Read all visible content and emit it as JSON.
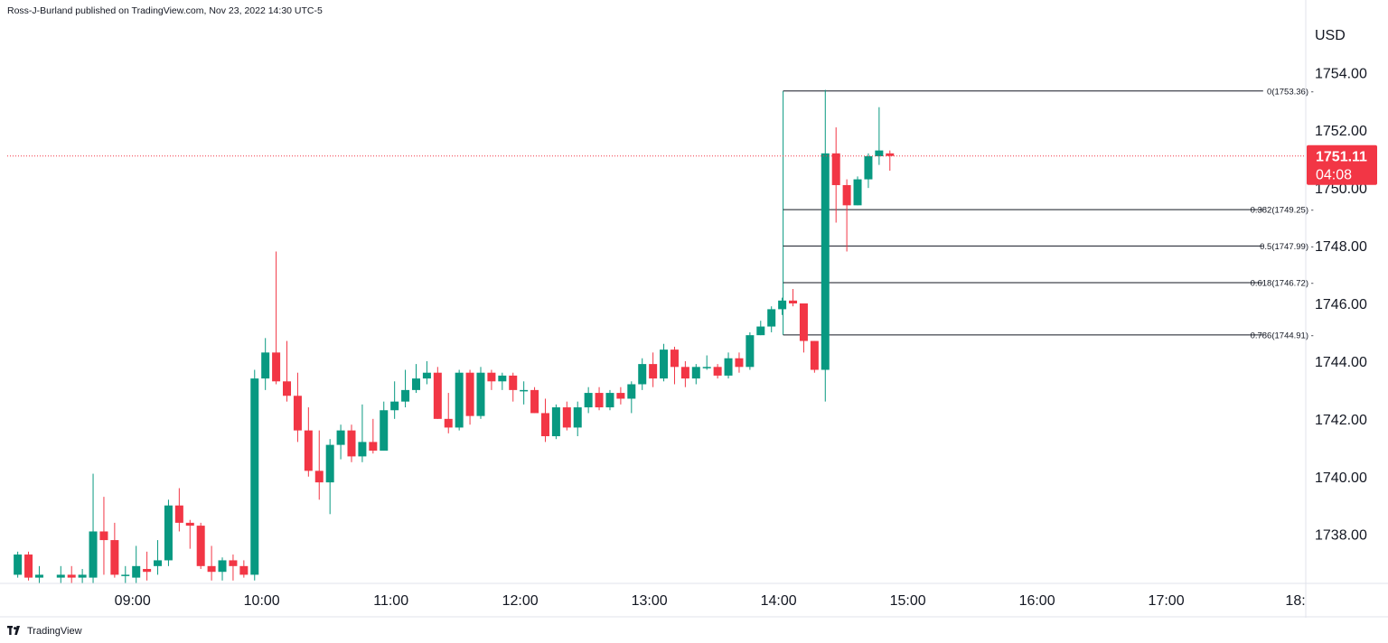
{
  "header": {
    "publisher_line": "Ross-J-Burland published on TradingView.com, Nov 23, 2022 14:30 UTC-5"
  },
  "footer": {
    "brand": "TradingView",
    "logo_icon": "tradingview-logo-icon"
  },
  "colors": {
    "up": "#089981",
    "down": "#f23645",
    "grid_border": "#e0e3eb",
    "fib_line": "#131722",
    "price_tag": "#f23645"
  },
  "chart_data": {
    "type": "candlestick",
    "currency_label": "USD",
    "ylim": [
      1736.3,
      1755.7
    ],
    "y_ticks": [
      "1754.00",
      "1752.00",
      "1750.00",
      "1748.00",
      "1746.00",
      "1744.00",
      "1742.00",
      "1740.00",
      "1738.00"
    ],
    "y_tick_values": [
      1754,
      1752,
      1750,
      1748,
      1746,
      1744,
      1742,
      1740,
      1738
    ],
    "x_ticks": [
      "09:00",
      "10:00",
      "11:00",
      "12:00",
      "13:00",
      "14:00",
      "15:00",
      "16:00",
      "17:00",
      "18:"
    ],
    "x_tick_values": [
      9,
      10,
      11,
      12,
      13,
      14,
      15,
      16,
      17,
      18
    ],
    "x_range": [
      8.03,
      18.08
    ],
    "bar_minutes": 5,
    "candles": [
      {
        "t": "08:05",
        "o": 1736.6,
        "h": 1737.4,
        "l": 1736.5,
        "c": 1737.3
      },
      {
        "t": "08:10",
        "o": 1737.3,
        "h": 1737.4,
        "l": 1736.4,
        "c": 1736.5
      },
      {
        "t": "08:15",
        "o": 1736.5,
        "h": 1736.9,
        "l": 1736.3,
        "c": 1736.6
      },
      {
        "t": "08:25",
        "o": 1736.5,
        "h": 1736.9,
        "l": 1736.3,
        "c": 1736.6
      },
      {
        "t": "08:30",
        "o": 1736.6,
        "h": 1736.9,
        "l": 1736.3,
        "c": 1736.5
      },
      {
        "t": "08:35",
        "o": 1736.5,
        "h": 1736.8,
        "l": 1736.3,
        "c": 1736.6
      },
      {
        "t": "08:40",
        "o": 1736.5,
        "h": 1740.1,
        "l": 1736.3,
        "c": 1738.1
      },
      {
        "t": "08:45",
        "o": 1738.1,
        "h": 1739.3,
        "l": 1736.6,
        "c": 1737.8
      },
      {
        "t": "08:50",
        "o": 1737.8,
        "h": 1738.4,
        "l": 1736.5,
        "c": 1736.6
      },
      {
        "t": "08:55",
        "o": 1736.6,
        "h": 1736.9,
        "l": 1736.3,
        "c": 1736.6
      },
      {
        "t": "09:00",
        "o": 1736.5,
        "h": 1737.6,
        "l": 1736.3,
        "c": 1736.9
      },
      {
        "t": "09:05",
        "o": 1736.8,
        "h": 1737.4,
        "l": 1736.4,
        "c": 1736.7
      },
      {
        "t": "09:10",
        "o": 1736.9,
        "h": 1737.8,
        "l": 1736.6,
        "c": 1737.1
      },
      {
        "t": "09:15",
        "o": 1737.1,
        "h": 1739.2,
        "l": 1736.9,
        "c": 1739.0
      },
      {
        "t": "09:20",
        "o": 1739.0,
        "h": 1739.6,
        "l": 1738.1,
        "c": 1738.4
      },
      {
        "t": "09:25",
        "o": 1738.4,
        "h": 1738.5,
        "l": 1737.5,
        "c": 1738.3
      },
      {
        "t": "09:30",
        "o": 1738.3,
        "h": 1738.4,
        "l": 1736.8,
        "c": 1736.9
      },
      {
        "t": "09:35",
        "o": 1736.9,
        "h": 1737.6,
        "l": 1736.4,
        "c": 1736.7
      },
      {
        "t": "09:40",
        "o": 1736.7,
        "h": 1737.2,
        "l": 1736.4,
        "c": 1737.1
      },
      {
        "t": "09:45",
        "o": 1737.1,
        "h": 1737.3,
        "l": 1736.4,
        "c": 1736.9
      },
      {
        "t": "09:50",
        "o": 1736.9,
        "h": 1737.1,
        "l": 1736.5,
        "c": 1736.6
      },
      {
        "t": "09:55",
        "o": 1736.6,
        "h": 1743.7,
        "l": 1736.4,
        "c": 1743.4
      },
      {
        "t": "10:00",
        "o": 1743.4,
        "h": 1744.8,
        "l": 1743.0,
        "c": 1744.3
      },
      {
        "t": "10:05",
        "o": 1744.3,
        "h": 1747.8,
        "l": 1743.2,
        "c": 1743.3
      },
      {
        "t": "10:10",
        "o": 1743.3,
        "h": 1744.7,
        "l": 1742.6,
        "c": 1742.8
      },
      {
        "t": "10:15",
        "o": 1742.8,
        "h": 1743.6,
        "l": 1741.2,
        "c": 1741.6
      },
      {
        "t": "10:20",
        "o": 1741.6,
        "h": 1742.4,
        "l": 1740.0,
        "c": 1740.2
      },
      {
        "t": "10:25",
        "o": 1740.2,
        "h": 1741.6,
        "l": 1739.2,
        "c": 1739.8
      },
      {
        "t": "10:30",
        "o": 1739.8,
        "h": 1741.3,
        "l": 1738.7,
        "c": 1741.1
      },
      {
        "t": "10:35",
        "o": 1741.1,
        "h": 1741.8,
        "l": 1740.6,
        "c": 1741.6
      },
      {
        "t": "10:40",
        "o": 1741.6,
        "h": 1741.8,
        "l": 1740.5,
        "c": 1740.7
      },
      {
        "t": "10:45",
        "o": 1740.7,
        "h": 1742.5,
        "l": 1740.5,
        "c": 1741.2
      },
      {
        "t": "10:50",
        "o": 1741.2,
        "h": 1742.0,
        "l": 1740.8,
        "c": 1740.9
      },
      {
        "t": "10:55",
        "o": 1740.9,
        "h": 1742.6,
        "l": 1740.9,
        "c": 1742.3
      },
      {
        "t": "11:00",
        "o": 1742.3,
        "h": 1743.3,
        "l": 1742.0,
        "c": 1742.6
      },
      {
        "t": "11:05",
        "o": 1742.6,
        "h": 1743.7,
        "l": 1742.4,
        "c": 1743.0
      },
      {
        "t": "11:10",
        "o": 1743.0,
        "h": 1743.9,
        "l": 1742.9,
        "c": 1743.4
      },
      {
        "t": "11:15",
        "o": 1743.4,
        "h": 1744.0,
        "l": 1743.2,
        "c": 1743.6
      },
      {
        "t": "11:20",
        "o": 1743.6,
        "h": 1743.8,
        "l": 1742.0,
        "c": 1742.0
      },
      {
        "t": "11:25",
        "o": 1742.0,
        "h": 1742.9,
        "l": 1741.5,
        "c": 1741.7
      },
      {
        "t": "11:30",
        "o": 1741.7,
        "h": 1743.7,
        "l": 1741.6,
        "c": 1743.6
      },
      {
        "t": "11:35",
        "o": 1743.6,
        "h": 1743.7,
        "l": 1741.8,
        "c": 1742.1
      },
      {
        "t": "11:40",
        "o": 1742.1,
        "h": 1743.8,
        "l": 1742.0,
        "c": 1743.6
      },
      {
        "t": "11:45",
        "o": 1743.6,
        "h": 1743.7,
        "l": 1743.0,
        "c": 1743.3
      },
      {
        "t": "11:50",
        "o": 1743.3,
        "h": 1743.6,
        "l": 1743.0,
        "c": 1743.5
      },
      {
        "t": "11:55",
        "o": 1743.5,
        "h": 1743.6,
        "l": 1742.6,
        "c": 1743.0
      },
      {
        "t": "12:00",
        "o": 1743.0,
        "h": 1743.3,
        "l": 1742.5,
        "c": 1743.0
      },
      {
        "t": "12:05",
        "o": 1743.0,
        "h": 1743.1,
        "l": 1742.2,
        "c": 1742.2
      },
      {
        "t": "12:10",
        "o": 1742.2,
        "h": 1742.7,
        "l": 1741.2,
        "c": 1741.4
      },
      {
        "t": "12:15",
        "o": 1741.4,
        "h": 1742.5,
        "l": 1741.3,
        "c": 1742.4
      },
      {
        "t": "12:20",
        "o": 1742.4,
        "h": 1742.6,
        "l": 1741.6,
        "c": 1741.7
      },
      {
        "t": "12:25",
        "o": 1741.7,
        "h": 1742.6,
        "l": 1741.4,
        "c": 1742.4
      },
      {
        "t": "12:30",
        "o": 1742.4,
        "h": 1743.1,
        "l": 1742.2,
        "c": 1742.9
      },
      {
        "t": "12:35",
        "o": 1742.9,
        "h": 1743.1,
        "l": 1742.3,
        "c": 1742.4
      },
      {
        "t": "12:40",
        "o": 1742.4,
        "h": 1743.0,
        "l": 1742.3,
        "c": 1742.9
      },
      {
        "t": "12:45",
        "o": 1742.9,
        "h": 1743.1,
        "l": 1742.5,
        "c": 1742.7
      },
      {
        "t": "12:50",
        "o": 1742.7,
        "h": 1743.3,
        "l": 1742.2,
        "c": 1743.2
      },
      {
        "t": "12:55",
        "o": 1743.2,
        "h": 1744.1,
        "l": 1743.0,
        "c": 1743.9
      },
      {
        "t": "13:00",
        "o": 1743.9,
        "h": 1744.3,
        "l": 1743.1,
        "c": 1743.4
      },
      {
        "t": "13:05",
        "o": 1743.4,
        "h": 1744.6,
        "l": 1743.3,
        "c": 1744.4
      },
      {
        "t": "13:10",
        "o": 1744.4,
        "h": 1744.5,
        "l": 1743.2,
        "c": 1743.8
      },
      {
        "t": "13:15",
        "o": 1743.8,
        "h": 1744.0,
        "l": 1743.1,
        "c": 1743.4
      },
      {
        "t": "13:20",
        "o": 1743.4,
        "h": 1743.9,
        "l": 1743.2,
        "c": 1743.8
      },
      {
        "t": "13:25",
        "o": 1743.8,
        "h": 1744.2,
        "l": 1743.7,
        "c": 1743.8
      },
      {
        "t": "13:30",
        "o": 1743.8,
        "h": 1743.9,
        "l": 1743.4,
        "c": 1743.5
      },
      {
        "t": "13:35",
        "o": 1743.5,
        "h": 1744.3,
        "l": 1743.4,
        "c": 1744.1
      },
      {
        "t": "13:40",
        "o": 1744.1,
        "h": 1744.3,
        "l": 1743.6,
        "c": 1743.8
      },
      {
        "t": "13:45",
        "o": 1743.8,
        "h": 1745.0,
        "l": 1743.7,
        "c": 1744.9
      },
      {
        "t": "13:50",
        "o": 1744.9,
        "h": 1745.4,
        "l": 1744.9,
        "c": 1745.2
      },
      {
        "t": "13:55",
        "o": 1745.2,
        "h": 1745.9,
        "l": 1745.0,
        "c": 1745.8
      }
    ],
    "candles_late": [
      {
        "t": "14:00",
        "o": 1745.8,
        "h": 1746.2,
        "l": 1745.6,
        "c": 1746.1
      },
      {
        "t": "14:05",
        "o": 1746.1,
        "h": 1746.5,
        "l": 1745.9,
        "c": 1746.0
      },
      {
        "t": "14:10",
        "o": 1746.0,
        "h": 1746.0,
        "l": 1744.3,
        "c": 1744.7
      },
      {
        "t": "14:15",
        "o": 1744.7,
        "h": 1744.7,
        "l": 1743.6,
        "c": 1743.7
      },
      {
        "t": "14:20",
        "o": 1743.7,
        "h": 1753.4,
        "l": 1742.6,
        "c": 1751.2
      },
      {
        "t": "14:25",
        "o": 1751.2,
        "h": 1752.1,
        "l": 1748.8,
        "c": 1750.1
      },
      {
        "t": "14:30",
        "o": 1750.1,
        "h": 1750.3,
        "l": 1747.8,
        "c": 1749.4
      },
      {
        "t": "14:35",
        "o": 1749.4,
        "h": 1750.4,
        "l": 1749.4,
        "c": 1750.3
      },
      {
        "t": "14:40",
        "o": 1750.3,
        "h": 1751.2,
        "l": 1750.0,
        "c": 1751.1
      },
      {
        "t": "14:45",
        "o": 1751.1,
        "h": 1752.8,
        "l": 1750.8,
        "c": 1751.3
      },
      {
        "t": "14:50",
        "o": 1751.2,
        "h": 1751.3,
        "l": 1750.6,
        "c": 1751.11
      }
    ],
    "fibonacci": {
      "levels": [
        {
          "ratio": 0,
          "price": 1753.36,
          "label": "0(1753.36)"
        },
        {
          "ratio": 0.382,
          "price": 1749.25,
          "label": "0.382(1749.25)"
        },
        {
          "ratio": 0.5,
          "price": 1747.99,
          "label": "0.5(1747.99)"
        },
        {
          "ratio": 0.618,
          "price": 1746.72,
          "label": "0.618(1746.72)"
        },
        {
          "ratio": 0.786,
          "price": 1744.91,
          "label": "0.786(1744.91)"
        }
      ],
      "start_time": "14:00",
      "end_time": "17:45"
    },
    "last_price": {
      "value": 1751.11,
      "label": "1751.11",
      "countdown": "04:08"
    }
  }
}
